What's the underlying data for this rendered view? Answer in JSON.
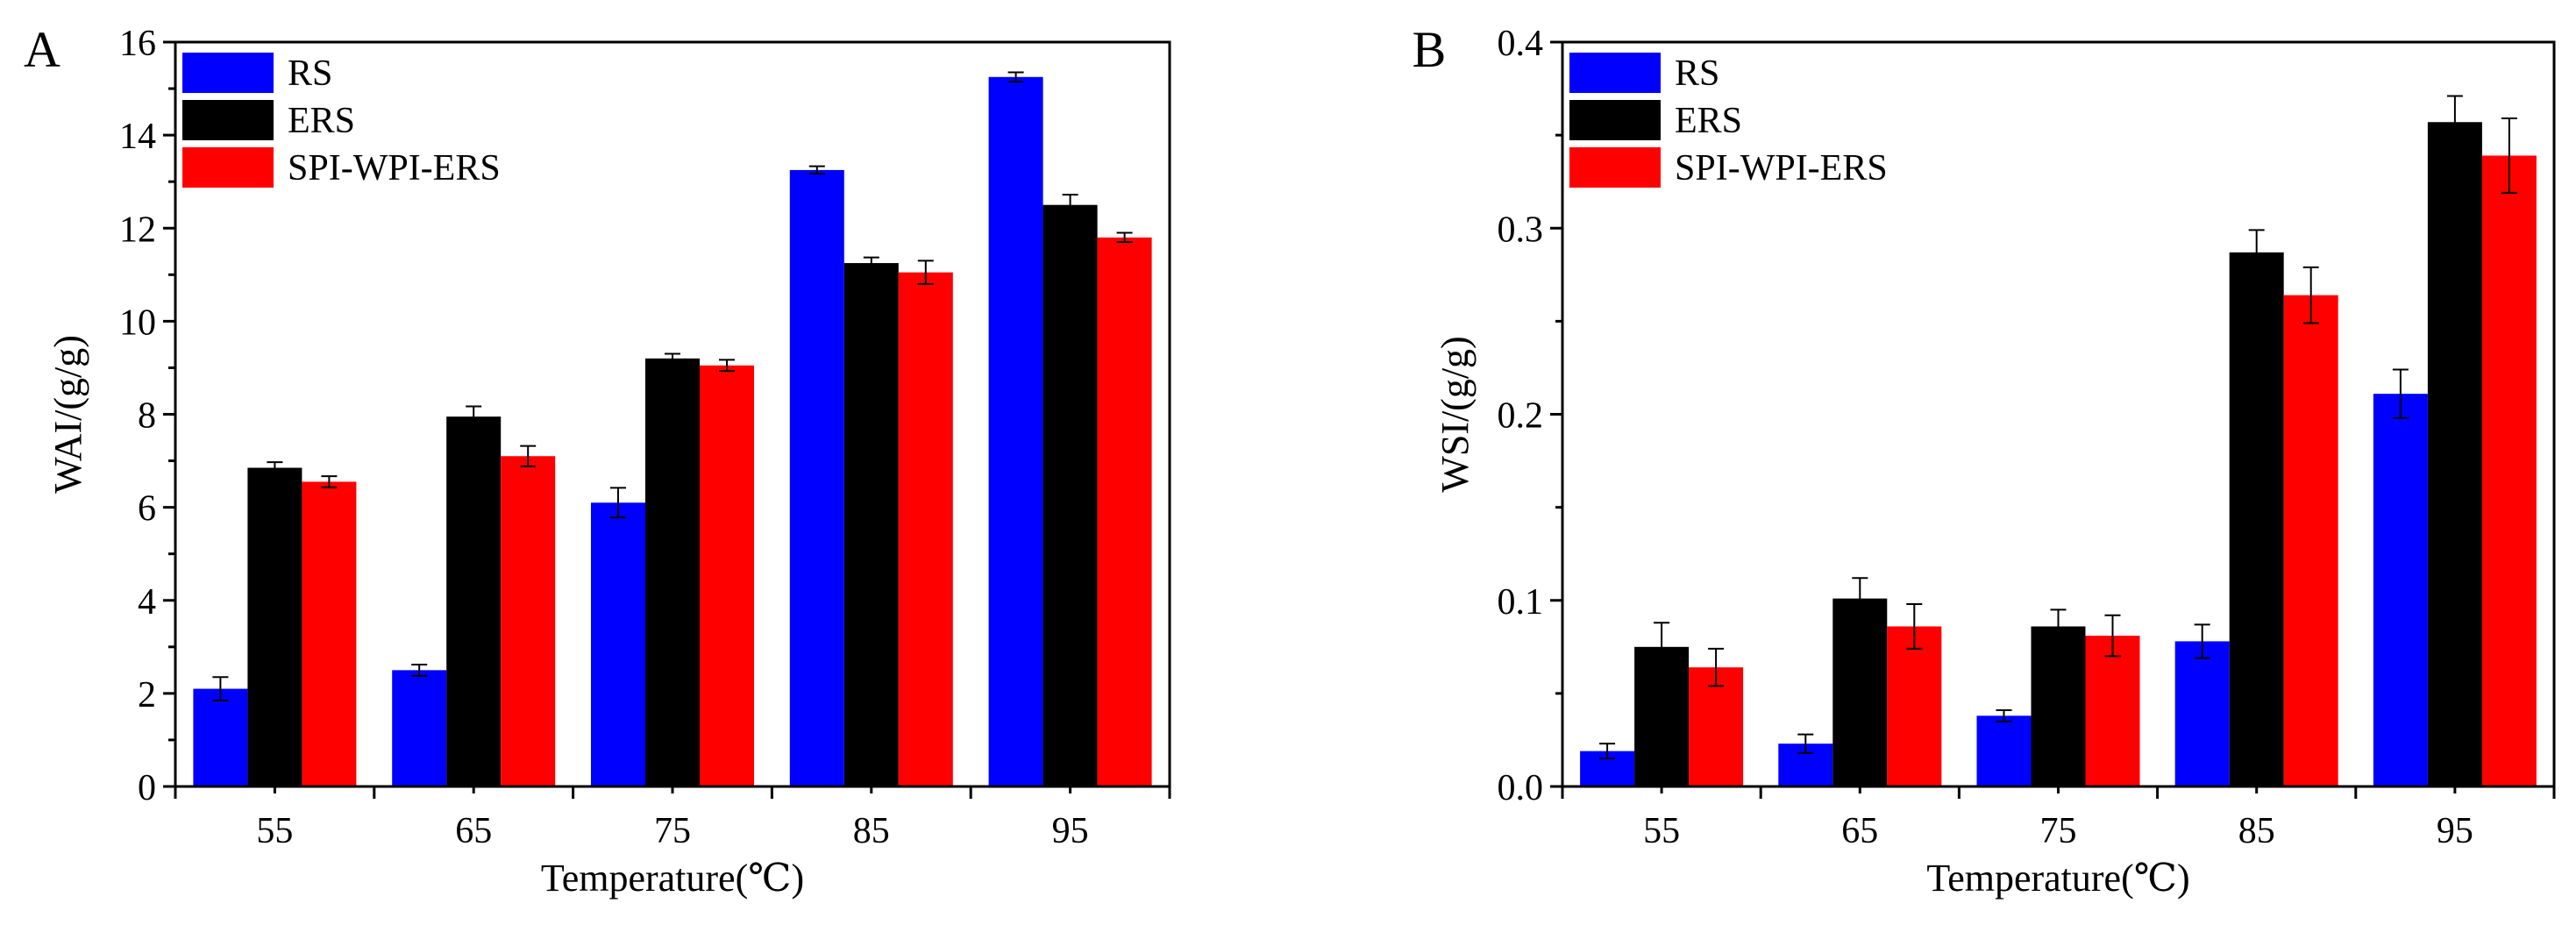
{
  "chart_data": [
    {
      "type": "bar",
      "panel_label": "A",
      "title": "",
      "xlabel": "Temperature(℃)",
      "ylabel": "WAI/(g/g)",
      "categories": [
        "55",
        "65",
        "75",
        "85",
        "95"
      ],
      "ylim": [
        0,
        16
      ],
      "yticks": [
        "0",
        "2",
        "4",
        "6",
        "8",
        "10",
        "12",
        "14",
        "16"
      ],
      "yticks_values": [
        0,
        2,
        4,
        6,
        8,
        10,
        12,
        14,
        16
      ],
      "legend_position": "top-left",
      "grid": false,
      "series": [
        {
          "name": "RS",
          "color": "#0000ff",
          "values": [
            2.1,
            2.5,
            6.1,
            13.25,
            15.25
          ],
          "errors": [
            0.25,
            0.12,
            0.32,
            0.08,
            0.1
          ]
        },
        {
          "name": "ERS",
          "color": "#000000",
          "values": [
            6.85,
            7.95,
            9.2,
            11.25,
            12.5
          ],
          "errors": [
            0.12,
            0.22,
            0.1,
            0.12,
            0.22
          ]
        },
        {
          "name": "SPI-WPI-ERS",
          "color": "#ff0000",
          "values": [
            6.55,
            7.1,
            9.05,
            11.05,
            11.8
          ],
          "errors": [
            0.12,
            0.22,
            0.12,
            0.25,
            0.1
          ]
        }
      ]
    },
    {
      "type": "bar",
      "panel_label": "B",
      "title": "",
      "xlabel": "Temperature(℃)",
      "ylabel": "WSI/(g/g)",
      "categories": [
        "55",
        "65",
        "75",
        "85",
        "95"
      ],
      "ylim": [
        0,
        0.4
      ],
      "yticks": [
        "0.0",
        "0.1",
        "0.2",
        "0.3",
        "0.4"
      ],
      "yticks_values": [
        0,
        0.1,
        0.2,
        0.3,
        0.4
      ],
      "legend_position": "top-left",
      "grid": false,
      "series": [
        {
          "name": "RS",
          "color": "#0000ff",
          "values": [
            0.019,
            0.023,
            0.038,
            0.078,
            0.211
          ],
          "errors": [
            0.004,
            0.005,
            0.003,
            0.009,
            0.013
          ]
        },
        {
          "name": "ERS",
          "color": "#000000",
          "values": [
            0.075,
            0.101,
            0.086,
            0.287,
            0.357
          ],
          "errors": [
            0.013,
            0.011,
            0.009,
            0.012,
            0.014
          ]
        },
        {
          "name": "SPI-WPI-ERS",
          "color": "#ff0000",
          "values": [
            0.064,
            0.086,
            0.081,
            0.264,
            0.339
          ],
          "errors": [
            0.01,
            0.012,
            0.011,
            0.015,
            0.02
          ]
        }
      ]
    }
  ]
}
